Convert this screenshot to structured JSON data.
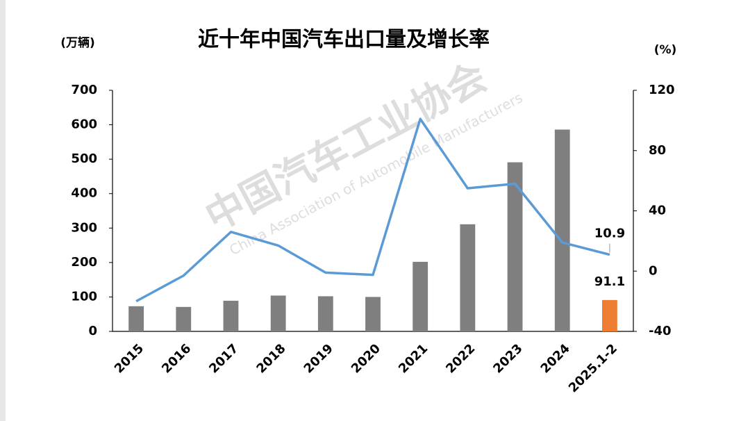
{
  "chart_data": {
    "type": "bar",
    "title": "近十年中国汽车出口量及增长率",
    "y_label": "(万辆)",
    "y2_label": "(%)",
    "watermark": {
      "cn": "中国汽车工业协会",
      "en": "China Association of Automobile Manufacturers"
    },
    "categories": [
      "2015",
      "2016",
      "2017",
      "2018",
      "2019",
      "2020",
      "2021",
      "2022",
      "2023",
      "2024",
      "2025.1-2"
    ],
    "series": [
      {
        "type": "bar",
        "axis": "y",
        "colors": [
          "#7f7f7f",
          "#7f7f7f",
          "#7f7f7f",
          "#7f7f7f",
          "#7f7f7f",
          "#7f7f7f",
          "#7f7f7f",
          "#7f7f7f",
          "#7f7f7f",
          "#7f7f7f",
          "#ed7d31"
        ],
        "values": [
          73,
          71,
          89,
          104,
          102,
          100,
          202,
          311,
          491,
          586,
          91.1
        ]
      },
      {
        "type": "line",
        "axis": "y2",
        "color": "#5b9bd5",
        "values": [
          -20,
          -3,
          26,
          17,
          -1,
          -2.5,
          101,
          55,
          58,
          19,
          10.9
        ]
      }
    ],
    "ylim": [
      0,
      700
    ],
    "yticks": [
      0,
      100,
      200,
      300,
      400,
      500,
      600,
      700
    ],
    "y2lim": [
      -40,
      120
    ],
    "y2ticks": [
      -40,
      0,
      40,
      80,
      120
    ]
  }
}
